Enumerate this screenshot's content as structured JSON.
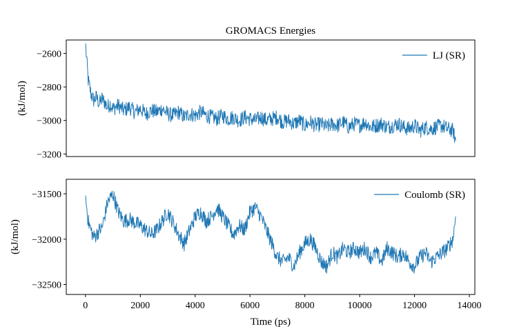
{
  "chart_data": [
    {
      "type": "line",
      "title": "GROMACS Energies",
      "xlabel": "",
      "ylabel": "(kJ/mol)",
      "xlim": [
        -700,
        14200
      ],
      "ylim": [
        -3215,
        -2520
      ],
      "yticks": [
        -2600,
        -2800,
        -3000,
        -3200
      ],
      "yticklabels": [
        "−2600",
        "−2800",
        "−3000",
        "−3200"
      ],
      "show_xticks": false,
      "legend_position": "top-right",
      "color": "#1f77b4",
      "series": [
        {
          "name": "LJ (SR)",
          "x": [
            0,
            100,
            200,
            300,
            400,
            500,
            600,
            700,
            800,
            900,
            1000,
            1200,
            1400,
            1600,
            1800,
            2000,
            2200,
            2400,
            2600,
            2800,
            3000,
            3200,
            3400,
            3600,
            3800,
            4000,
            4200,
            4400,
            4600,
            4800,
            5000,
            5200,
            5400,
            5600,
            5800,
            6000,
            6200,
            6400,
            6600,
            6800,
            7000,
            7200,
            7400,
            7600,
            7800,
            8000,
            8200,
            8400,
            8600,
            8800,
            9000,
            9200,
            9400,
            9600,
            9800,
            10000,
            10200,
            10400,
            10600,
            10800,
            11000,
            11200,
            11400,
            11600,
            11800,
            12000,
            12200,
            12400,
            12600,
            12800,
            13000,
            13200,
            13400,
            13500
          ],
          "values": [
            -2540,
            -2760,
            -2840,
            -2880,
            -2860,
            -2900,
            -2870,
            -2890,
            -2920,
            -2900,
            -2930,
            -2910,
            -2940,
            -2920,
            -2950,
            -2930,
            -2960,
            -2940,
            -2950,
            -2930,
            -2960,
            -2970,
            -2950,
            -2980,
            -2960,
            -2970,
            -2950,
            -2970,
            -2980,
            -2990,
            -2970,
            -2990,
            -2980,
            -3000,
            -2980,
            -2990,
            -3000,
            -2980,
            -3000,
            -2990,
            -2980,
            -3010,
            -3000,
            -3020,
            -3000,
            -3030,
            -3010,
            -3030,
            -3020,
            -3040,
            -3020,
            -3030,
            -3010,
            -3040,
            -3020,
            -3030,
            -3010,
            -3040,
            -3030,
            -3020,
            -3040,
            -3030,
            -3020,
            -3040,
            -3050,
            -3030,
            -3060,
            -3040,
            -3050,
            -3040,
            -3030,
            -3050,
            -3060,
            -3120
          ]
        }
      ]
    },
    {
      "type": "line",
      "title": "",
      "xlabel": "Time (ps)",
      "ylabel": "(kJ/mol)",
      "xlim": [
        -700,
        14200
      ],
      "ylim": [
        -32610,
        -31340
      ],
      "xticks": [
        0,
        2000,
        4000,
        6000,
        8000,
        10000,
        12000,
        14000
      ],
      "xticklabels": [
        "0",
        "2000",
        "4000",
        "6000",
        "8000",
        "10000",
        "12000",
        "14000"
      ],
      "yticks": [
        -31500,
        -32000,
        -32500
      ],
      "yticklabels": [
        "−31500",
        "−32000",
        "−32500"
      ],
      "legend_position": "top-right",
      "color": "#1f77b4",
      "series": [
        {
          "name": "Coulomb (SR)",
          "x": [
            0,
            100,
            200,
            300,
            400,
            500,
            600,
            700,
            800,
            900,
            1000,
            1200,
            1400,
            1600,
            1800,
            2000,
            2200,
            2400,
            2600,
            2800,
            3000,
            3200,
            3400,
            3600,
            3800,
            4000,
            4200,
            4400,
            4600,
            4800,
            5000,
            5200,
            5400,
            5600,
            5800,
            6000,
            6200,
            6400,
            6600,
            6800,
            7000,
            7200,
            7400,
            7600,
            7800,
            8000,
            8200,
            8400,
            8600,
            8800,
            9000,
            9200,
            9400,
            9600,
            9800,
            10000,
            10200,
            10400,
            10600,
            10800,
            11000,
            11200,
            11400,
            11600,
            11800,
            12000,
            12200,
            12400,
            12600,
            12800,
            13000,
            13200,
            13400,
            13500
          ],
          "values": [
            -31520,
            -31800,
            -31900,
            -31980,
            -31950,
            -31900,
            -31880,
            -31750,
            -31600,
            -31550,
            -31500,
            -31700,
            -31800,
            -31780,
            -31820,
            -31850,
            -31900,
            -31950,
            -31900,
            -31800,
            -31700,
            -31820,
            -31950,
            -32050,
            -31900,
            -31750,
            -31700,
            -31800,
            -31750,
            -31650,
            -31750,
            -31850,
            -31950,
            -31850,
            -31900,
            -31700,
            -31650,
            -31750,
            -31900,
            -32050,
            -32200,
            -32250,
            -32200,
            -32300,
            -32150,
            -32050,
            -32000,
            -32100,
            -32250,
            -32300,
            -32150,
            -32200,
            -32100,
            -32150,
            -32100,
            -32150,
            -32100,
            -32200,
            -32150,
            -32250,
            -32100,
            -32150,
            -32200,
            -32150,
            -32250,
            -32300,
            -32200,
            -32150,
            -32250,
            -32200,
            -32150,
            -32100,
            -32000,
            -31750
          ]
        }
      ]
    }
  ]
}
